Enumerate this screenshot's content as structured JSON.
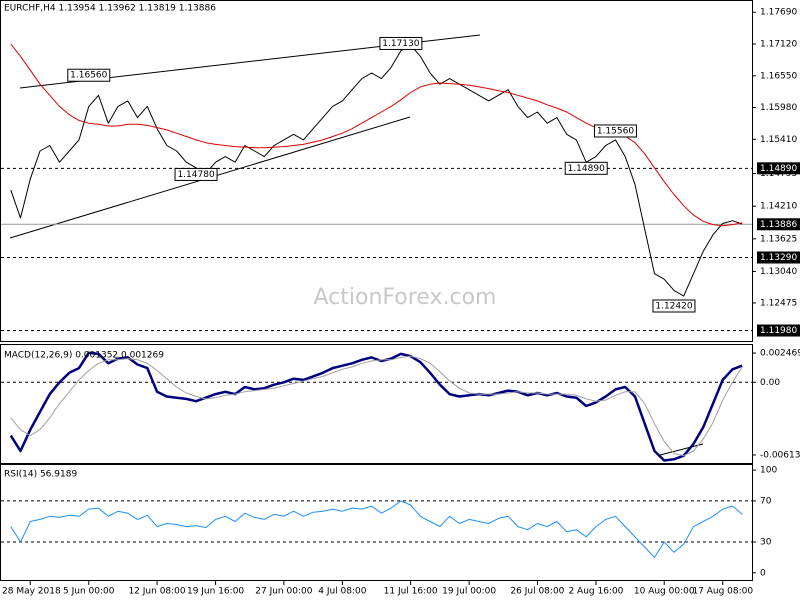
{
  "chart_data": [
    {
      "type": "line",
      "title": "EURCHF,H4  1.13954 1.13962 1.13819 1.13886",
      "watermark": "ActionForex.com",
      "x": [
        0,
        1,
        2,
        3,
        4,
        5,
        6,
        7,
        8,
        9,
        10,
        11,
        12,
        13,
        14,
        15,
        16,
        17,
        18,
        19,
        20,
        21,
        22,
        23,
        24,
        25,
        26,
        27,
        28,
        29,
        30,
        31,
        32,
        33,
        34,
        35,
        36,
        37,
        38,
        39,
        40,
        41,
        42,
        43,
        44,
        45,
        46,
        47,
        48,
        49,
        50,
        51,
        52,
        53,
        54,
        55,
        56,
        57,
        58,
        59,
        60,
        61,
        62,
        63,
        64,
        65,
        66,
        67,
        68,
        69,
        70,
        71,
        72,
        73,
        74,
        75
      ],
      "xlim": [
        -1,
        76
      ],
      "xticks": [
        {
          "value": 2,
          "label": "28 May 2018"
        },
        {
          "value": 8,
          "label": "5 Jun 00:00"
        },
        {
          "value": 15,
          "label": "12 Jun 08:00"
        },
        {
          "value": 21,
          "label": "19 Jun 16:00"
        },
        {
          "value": 28,
          "label": "27 Jun 00:00"
        },
        {
          "value": 34,
          "label": "4 Jul 08:00"
        },
        {
          "value": 41,
          "label": "11 Jul 16:00"
        },
        {
          "value": 47,
          "label": "19 Jul 00:00"
        },
        {
          "value": 54,
          "label": "26 Jul 08:00"
        },
        {
          "value": 60,
          "label": "2 Aug 16:00"
        },
        {
          "value": 67,
          "label": "10 Aug 00:00"
        },
        {
          "value": 73,
          "label": "17 Aug 08:00"
        }
      ],
      "ylim": [
        1.1181,
        1.1782
      ],
      "yticks": [
        {
          "value": 1.1769,
          "label": "1.17690"
        },
        {
          "value": 1.1712,
          "label": "1.17120"
        },
        {
          "value": 1.1655,
          "label": "1.16550"
        },
        {
          "value": 1.1598,
          "label": "1.15980"
        },
        {
          "value": 1.1541,
          "label": "1.15410"
        },
        {
          "value": 1.14795,
          "label": "1.14795"
        },
        {
          "value": 1.1421,
          "label": "1.14210"
        },
        {
          "value": 1.13625,
          "label": "1.13625"
        },
        {
          "value": 1.1304,
          "label": "1.13040"
        },
        {
          "value": 1.12475,
          "label": "1.12475"
        }
      ],
      "levels": [
        {
          "value": 1.1489,
          "label": "1.14890",
          "style": "dashed"
        },
        {
          "value": 1.13886,
          "label": "1.13886",
          "style": "solid"
        },
        {
          "value": 1.1329,
          "label": "1.13290",
          "style": "dashed"
        },
        {
          "value": 1.1198,
          "label": "1.11980",
          "style": "dashed"
        }
      ],
      "annotations": [
        {
          "text": "1.16560",
          "x": 8,
          "y": 1.1656
        },
        {
          "text": "1.17130",
          "x": 40,
          "y": 1.1713
        },
        {
          "text": "1.14780",
          "x": 19,
          "y": 1.1478
        },
        {
          "text": "1.15560",
          "x": 62,
          "y": 1.1556
        },
        {
          "text": "1.14890",
          "x": 59,
          "y": 1.1489
        },
        {
          "text": "1.12420",
          "x": 68,
          "y": 1.1242
        }
      ],
      "series": [
        {
          "color": "#000000",
          "width": 1,
          "values": [
            1.145,
            1.14,
            1.147,
            1.152,
            1.153,
            1.15,
            1.152,
            1.154,
            1.16,
            1.162,
            1.157,
            1.16,
            1.161,
            1.158,
            1.16,
            1.156,
            1.153,
            1.152,
            1.15,
            1.149,
            1.148,
            1.15,
            1.151,
            1.15,
            1.153,
            1.152,
            1.151,
            1.153,
            1.154,
            1.155,
            1.154,
            1.156,
            1.158,
            1.16,
            1.161,
            1.163,
            1.165,
            1.166,
            1.165,
            1.167,
            1.17,
            1.171,
            1.169,
            1.166,
            1.164,
            1.165,
            1.164,
            1.163,
            1.162,
            1.161,
            1.162,
            1.163,
            1.16,
            1.158,
            1.159,
            1.157,
            1.158,
            1.155,
            1.154,
            1.15,
            1.151,
            1.153,
            1.154,
            1.151,
            1.146,
            1.138,
            1.13,
            1.129,
            1.127,
            1.126,
            1.13,
            1.134,
            1.137,
            1.139,
            1.1395,
            1.1389
          ]
        },
        {
          "color": "#e00000",
          "width": 1,
          "values": [
            1.1712,
            1.169,
            1.1665,
            1.164,
            1.162,
            1.16,
            1.1585,
            1.1575,
            1.157,
            1.1568,
            1.1565,
            1.1565,
            1.1568,
            1.1568,
            1.1566,
            1.1562,
            1.1558,
            1.1552,
            1.1546,
            1.154,
            1.1535,
            1.1532,
            1.153,
            1.1528,
            1.1527,
            1.1526,
            1.1526,
            1.1527,
            1.1528,
            1.153,
            1.1532,
            1.1536,
            1.154,
            1.1546,
            1.1552,
            1.156,
            1.157,
            1.158,
            1.159,
            1.16,
            1.1612,
            1.1625,
            1.1635,
            1.164,
            1.1642,
            1.1641,
            1.164,
            1.1638,
            1.1635,
            1.1632,
            1.1628,
            1.1625,
            1.162,
            1.1615,
            1.161,
            1.1603,
            1.1597,
            1.159,
            1.158,
            1.157,
            1.1562,
            1.1556,
            1.1552,
            1.1547,
            1.1535,
            1.1515,
            1.149,
            1.1465,
            1.1442,
            1.1422,
            1.1405,
            1.1394,
            1.1388,
            1.1386,
            1.1388,
            1.1391
          ]
        }
      ]
    },
    {
      "type": "line",
      "title": "MACD(12,26,9) 0.001352 0.001269",
      "ylim": [
        -0.00673,
        0.00298
      ],
      "yticks": [
        0.002469,
        {
          "value": 0,
          "label": "0.00"
        },
        -0.006136
      ],
      "levels": [
        {
          "value": 0,
          "style": "dashed"
        }
      ],
      "series": [
        {
          "color": "#000080",
          "width": 2.5,
          "values": [
            -0.0045,
            -0.0058,
            -0.004,
            -0.0025,
            -0.001,
            0.0,
            0.0008,
            0.0012,
            0.0025,
            0.0024,
            0.0016,
            0.002,
            0.0021,
            0.0015,
            0.0012,
            -0.0008,
            -0.0012,
            -0.0013,
            -0.0014,
            -0.0016,
            -0.0013,
            -0.001,
            -0.0008,
            -0.001,
            -0.0004,
            -0.0006,
            -0.0005,
            -0.0002,
            0.0,
            0.0003,
            0.0002,
            0.0005,
            0.0008,
            0.0012,
            0.0014,
            0.0016,
            0.0019,
            0.0021,
            0.0018,
            0.002,
            0.0024,
            0.0022,
            0.0017,
            0.0008,
            -0.0002,
            -0.001,
            -0.0012,
            -0.0011,
            -0.001,
            -0.0011,
            -0.0009,
            -0.0007,
            -0.0008,
            -0.0011,
            -0.0009,
            -0.0011,
            -0.0009,
            -0.0012,
            -0.0013,
            -0.002,
            -0.0017,
            -0.0012,
            -0.0006,
            -0.0004,
            -0.0012,
            -0.0035,
            -0.0058,
            -0.0066,
            -0.0065,
            -0.0062,
            -0.0052,
            -0.0038,
            -0.0018,
            0.0002,
            0.0011,
            0.0014
          ]
        },
        {
          "color": "#a0a0a0",
          "width": 1,
          "values": [
            -0.003,
            -0.004,
            -0.0045,
            -0.004,
            -0.003,
            -0.0018,
            -0.0008,
            0.0002,
            0.001,
            0.0016,
            0.0019,
            0.0019,
            0.002,
            0.0019,
            0.0016,
            0.001,
            0.0003,
            -0.0004,
            -0.0009,
            -0.0012,
            -0.0014,
            -0.0013,
            -0.0011,
            -0.001,
            -0.0008,
            -0.0007,
            -0.0006,
            -0.0005,
            -0.0003,
            -0.0001,
            0.0001,
            0.0003,
            0.0005,
            0.0008,
            0.0011,
            0.0013,
            0.0016,
            0.0018,
            0.0019,
            0.0019,
            0.0021,
            0.0022,
            0.002,
            0.0016,
            0.0009,
            0.0001,
            -0.0005,
            -0.0009,
            -0.001,
            -0.001,
            -0.001,
            -0.0009,
            -0.0008,
            -0.0009,
            -0.0009,
            -0.001,
            -0.001,
            -0.001,
            -0.0011,
            -0.0014,
            -0.0016,
            -0.0015,
            -0.0011,
            -0.0008,
            -0.0008,
            -0.0018,
            -0.0035,
            -0.005,
            -0.006,
            -0.0062,
            -0.0058,
            -0.0048,
            -0.0034,
            -0.0015,
            0.0,
            0.0013
          ]
        }
      ]
    },
    {
      "type": "line",
      "title": "RSI(14) 56.9189",
      "ylim": [
        -7,
        104
      ],
      "yticks": [
        100,
        70,
        30,
        0
      ],
      "levels": [
        {
          "value": 70,
          "style": "dashed"
        },
        {
          "value": 30,
          "style": "dashed"
        }
      ],
      "series": [
        {
          "color": "#1e90ff",
          "width": 1,
          "values": [
            45,
            30,
            50,
            52,
            55,
            54,
            56,
            55,
            62,
            63,
            55,
            60,
            58,
            52,
            56,
            45,
            48,
            47,
            45,
            46,
            44,
            52,
            55,
            50,
            58,
            54,
            52,
            57,
            55,
            60,
            55,
            59,
            60,
            62,
            60,
            63,
            62,
            65,
            58,
            63,
            70,
            66,
            55,
            50,
            45,
            55,
            48,
            52,
            50,
            48,
            53,
            55,
            45,
            42,
            48,
            45,
            50,
            40,
            42,
            35,
            45,
            52,
            55,
            45,
            35,
            25,
            15,
            30,
            20,
            28,
            45,
            50,
            55,
            62,
            65,
            57
          ]
        }
      ]
    }
  ]
}
